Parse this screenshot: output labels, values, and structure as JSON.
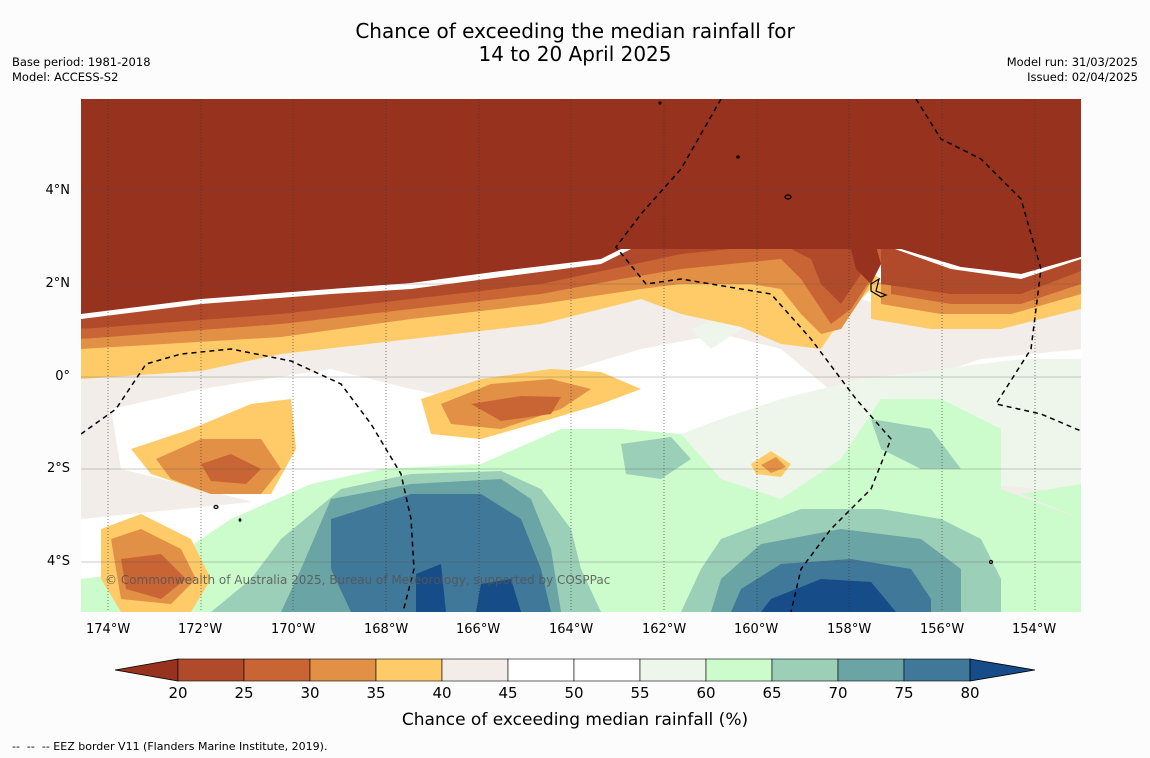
{
  "title": {
    "line1": "Chance of exceeding the median rainfall for",
    "line2": "14 to 20 April 2025"
  },
  "meta_left": {
    "base_period": "Base period: 1981-2018",
    "model": "Model: ACCESS-S2"
  },
  "meta_right": {
    "model_run": "Model run: 31/03/2025",
    "issued": "Issued: 02/04/2025"
  },
  "map": {
    "copyright": "© Commonwealth of Australia 2025, Bureau of Meteorology, supported by COSPPac",
    "lon_labels": [
      "174°W",
      "172°W",
      "170°W",
      "168°W",
      "166°W",
      "164°W",
      "162°W",
      "160°W",
      "158°W",
      "156°W",
      "154°W"
    ],
    "lat_labels": [
      "4°N",
      "2°N",
      "0°",
      "2°S",
      "4°S"
    ],
    "colors": {
      "p20": "#96321e",
      "p25": "#b04a2a",
      "p30": "#c96534",
      "p35": "#e19046",
      "p40": "#fecb68",
      "p45": "#f2ede8",
      "p55": "#ffffff",
      "p60": "#eef6ec",
      "p65": "#ccfccc",
      "p70": "#9ccfb8",
      "p75": "#6ba4a4",
      "p80": "#3f7899",
      "p85": "#164c88"
    }
  },
  "colorbar": {
    "ticks": [
      "20",
      "25",
      "30",
      "35",
      "40",
      "45",
      "50",
      "55",
      "60",
      "65",
      "70",
      "75",
      "80"
    ],
    "segment_colors": [
      "#b04a2a",
      "#c96534",
      "#e19046",
      "#fecb68",
      "#f2ede8",
      "#ffffff",
      "#ffffff",
      "#eef6ec",
      "#ccfccc",
      "#9ccfb8",
      "#6ba4a4",
      "#3f7899"
    ],
    "under_color": "#96321e",
    "over_color": "#164c88",
    "title": "Chance of exceeding median rainfall (%)"
  },
  "footnote": "--  --  -- EEZ border V11 (Flanders Marine Institute, 2019)."
}
